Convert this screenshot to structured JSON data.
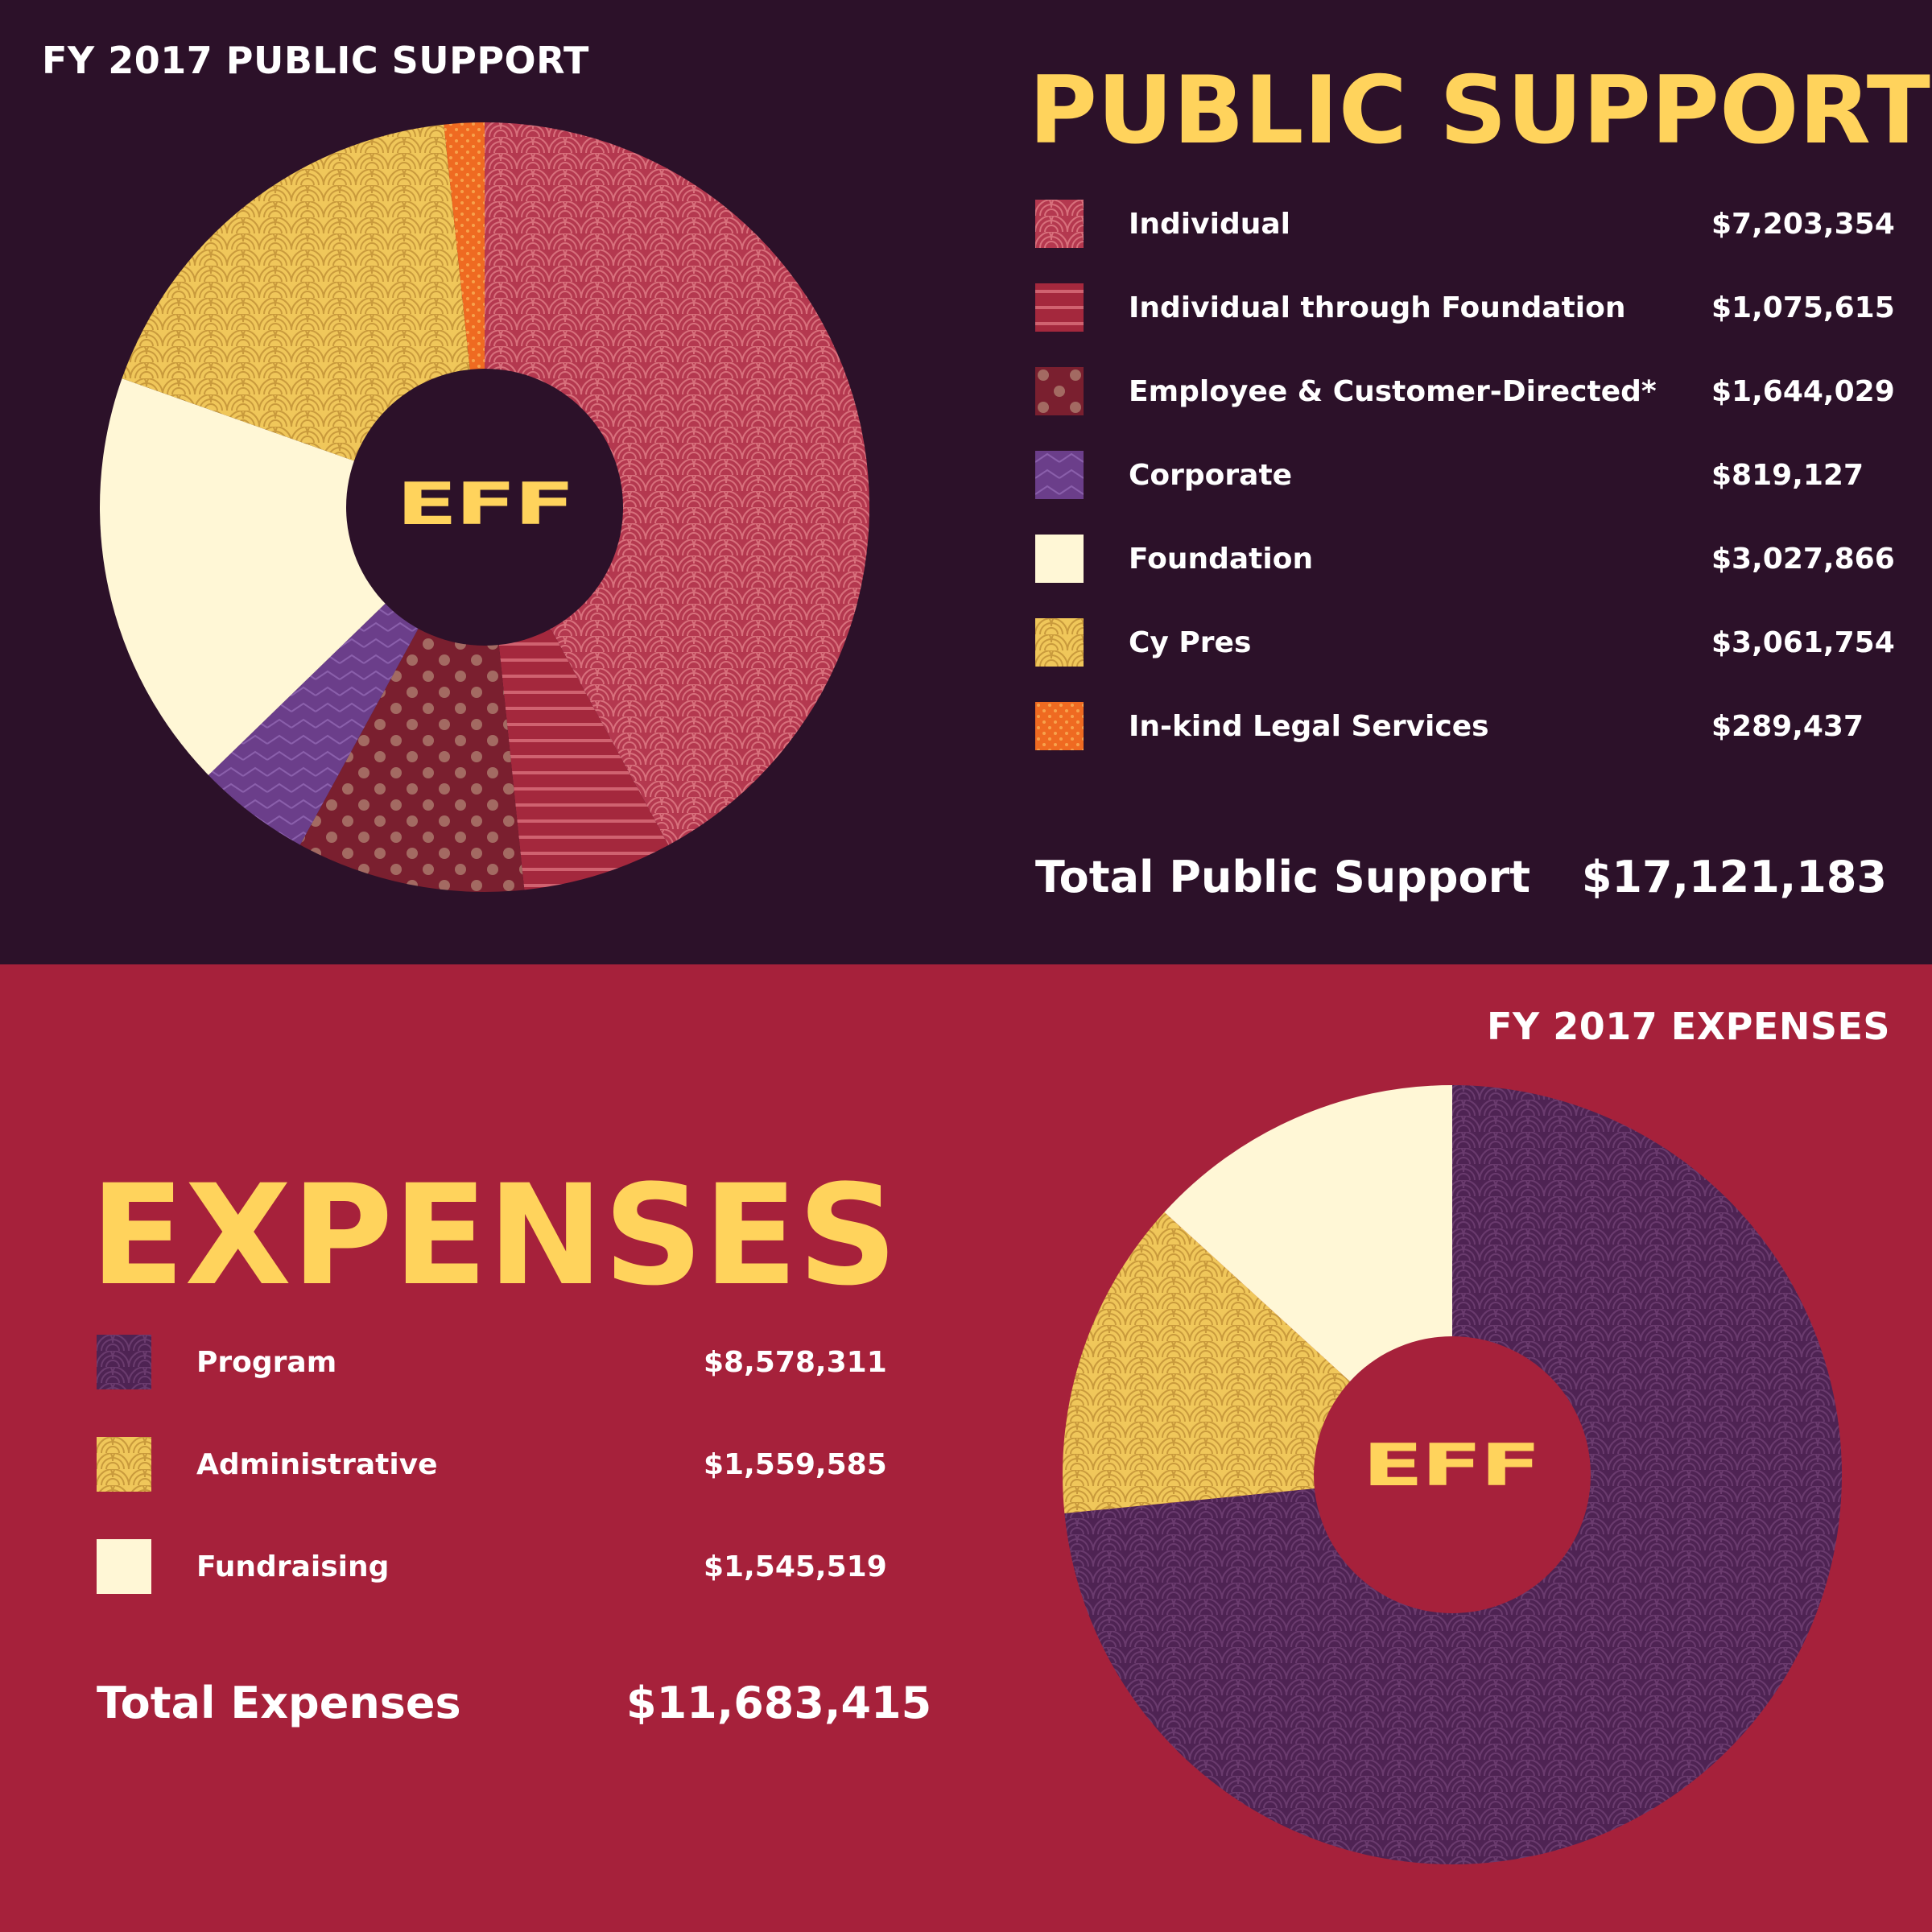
{
  "colors": {
    "top_bg": "#2c1129",
    "bottom_bg": "#a6213b",
    "accent": "#ffd35c"
  },
  "support": {
    "chart_title": "FY 2017 PUBLIC SUPPORT",
    "heading": "PUBLIC SUPPORT",
    "logo": "EFF",
    "items": [
      {
        "label": "Individual",
        "value": "$7,203,354",
        "pattern": "scales-rose"
      },
      {
        "label": "Individual through Foundation",
        "value": "$1,075,615",
        "pattern": "stripes-red"
      },
      {
        "label": "Employee & Customer-Directed*",
        "value": "$1,644,029",
        "pattern": "dots-maroon"
      },
      {
        "label": "Corporate",
        "value": "$819,127",
        "pattern": "chevron-purple"
      },
      {
        "label": "Foundation",
        "value": "$3,027,866",
        "pattern": "solid-cream"
      },
      {
        "label": "Cy Pres",
        "value": "$3,061,754",
        "pattern": "scales-yellow"
      },
      {
        "label": "In-kind Legal Services",
        "value": "$289,437",
        "pattern": "dots-orange"
      }
    ],
    "total_label": "Total Public Support",
    "total_value": "$17,121,183"
  },
  "expenses": {
    "chart_title": "FY 2017 EXPENSES",
    "heading": "EXPENSES",
    "logo": "EFF",
    "items": [
      {
        "label": "Program",
        "value": "$8,578,311",
        "pattern": "scales-purple"
      },
      {
        "label": "Administrative",
        "value": "$1,559,585",
        "pattern": "scales-yellow"
      },
      {
        "label": "Fundraising",
        "value": "$1,545,519",
        "pattern": "solid-cream"
      }
    ],
    "total_label": "Total Expenses",
    "total_value": "$11,683,415"
  },
  "chart_data": [
    {
      "type": "pie",
      "title": "FY 2017 PUBLIC SUPPORT",
      "categories": [
        "Individual",
        "Individual through Foundation",
        "Employee & Customer-Directed*",
        "Corporate",
        "Foundation",
        "Cy Pres",
        "In-kind Legal Services"
      ],
      "values": [
        7203354,
        1075615,
        1644029,
        819127,
        3027866,
        3061754,
        289437
      ],
      "donut": true
    },
    {
      "type": "pie",
      "title": "FY 2017 EXPENSES",
      "categories": [
        "Program",
        "Administrative",
        "Fundraising"
      ],
      "values": [
        8578311,
        1559585,
        1545519
      ],
      "donut": true
    }
  ]
}
